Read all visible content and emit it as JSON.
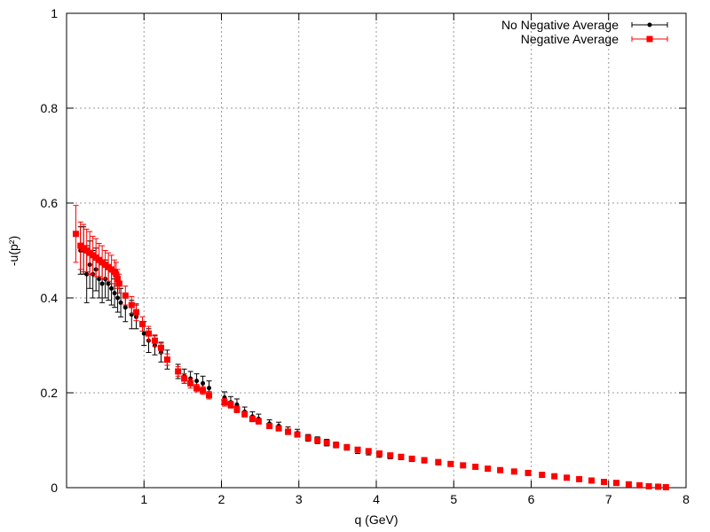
{
  "chart_data": {
    "type": "scatter",
    "title": "",
    "xlabel": "q (GeV)",
    "ylabel": "-u(p²)",
    "xlim": [
      0,
      8
    ],
    "ylim": [
      0,
      1
    ],
    "xticks": [
      "1",
      "2",
      "3",
      "4",
      "5",
      "6",
      "7",
      "8"
    ],
    "yticks": [
      "0",
      "0.2",
      "0.4",
      "0.6",
      "0.8",
      "1"
    ],
    "grid": true,
    "legend_position": "top-right",
    "series": [
      {
        "name": "No Negative Average",
        "color": "#000000",
        "marker": "circle",
        "points": [
          [
            0.18,
            0.5,
            0.05
          ],
          [
            0.22,
            0.5,
            0.05
          ],
          [
            0.26,
            0.45,
            0.06
          ],
          [
            0.3,
            0.47,
            0.05
          ],
          [
            0.34,
            0.45,
            0.05
          ],
          [
            0.38,
            0.46,
            0.045
          ],
          [
            0.42,
            0.44,
            0.04
          ],
          [
            0.46,
            0.43,
            0.04
          ],
          [
            0.5,
            0.44,
            0.04
          ],
          [
            0.54,
            0.43,
            0.035
          ],
          [
            0.58,
            0.42,
            0.035
          ],
          [
            0.62,
            0.41,
            0.03
          ],
          [
            0.66,
            0.4,
            0.03
          ],
          [
            0.7,
            0.39,
            0.03
          ],
          [
            0.76,
            0.38,
            0.03
          ],
          [
            0.84,
            0.365,
            0.03
          ],
          [
            0.9,
            0.36,
            0.025
          ],
          [
            1.0,
            0.325,
            0.025
          ],
          [
            1.06,
            0.31,
            0.025
          ],
          [
            1.14,
            0.3,
            0.02
          ],
          [
            1.22,
            0.285,
            0.02
          ],
          [
            1.3,
            0.27,
            0.02
          ],
          [
            1.44,
            0.245,
            0.015
          ],
          [
            1.52,
            0.235,
            0.015
          ],
          [
            1.6,
            0.23,
            0.015
          ],
          [
            1.68,
            0.225,
            0.015
          ],
          [
            1.76,
            0.22,
            0.015
          ],
          [
            1.84,
            0.21,
            0.015
          ],
          [
            2.04,
            0.19,
            0.012
          ],
          [
            2.12,
            0.18,
            0.012
          ],
          [
            2.2,
            0.175,
            0.012
          ],
          [
            2.3,
            0.16,
            0.01
          ],
          [
            2.4,
            0.15,
            0.01
          ],
          [
            2.48,
            0.145,
            0.01
          ],
          [
            2.62,
            0.135,
            0.008
          ],
          [
            2.74,
            0.13,
            0.008
          ],
          [
            2.86,
            0.12,
            0.008
          ],
          [
            2.98,
            0.115,
            0.008
          ],
          [
            3.12,
            0.105,
            0.007
          ],
          [
            3.24,
            0.1,
            0.007
          ],
          [
            3.36,
            0.095,
            0.007
          ],
          [
            3.48,
            0.09,
            0.006
          ],
          [
            3.62,
            0.085,
            0.006
          ],
          [
            3.76,
            0.078,
            0.006
          ],
          [
            3.9,
            0.075,
            0.006
          ],
          [
            4.04,
            0.07,
            0.006
          ],
          [
            4.18,
            0.066,
            0.005
          ],
          [
            4.32,
            0.064,
            0.005
          ],
          [
            4.46,
            0.06,
            0.005
          ],
          [
            4.62,
            0.057,
            0.005
          ],
          [
            4.8,
            0.053,
            0.005
          ],
          [
            4.96,
            0.05,
            0.005
          ],
          [
            5.12,
            0.047,
            0.004
          ],
          [
            5.28,
            0.044,
            0.004
          ],
          [
            5.44,
            0.04,
            0.004
          ],
          [
            5.6,
            0.037,
            0.004
          ],
          [
            5.78,
            0.034,
            0.004
          ],
          [
            5.96,
            0.031,
            0.004
          ],
          [
            6.14,
            0.028,
            0.004
          ],
          [
            6.3,
            0.025,
            0.004
          ],
          [
            6.46,
            0.022,
            0.004
          ],
          [
            6.62,
            0.019,
            0.004
          ],
          [
            6.78,
            0.016,
            0.004
          ],
          [
            6.94,
            0.013,
            0.004
          ],
          [
            7.1,
            0.011,
            0.004
          ],
          [
            7.26,
            0.008,
            0.004
          ],
          [
            7.4,
            0.006,
            0.003
          ],
          [
            7.52,
            0.004,
            0.003
          ],
          [
            7.64,
            0.003,
            0.003
          ],
          [
            7.74,
            0.002,
            0.003
          ]
        ]
      },
      {
        "name": "Negative Average",
        "color": "#ff0000",
        "marker": "square",
        "points": [
          [
            0.12,
            0.535,
            0.06
          ],
          [
            0.18,
            0.51,
            0.05
          ],
          [
            0.22,
            0.505,
            0.05
          ],
          [
            0.26,
            0.5,
            0.045
          ],
          [
            0.3,
            0.495,
            0.045
          ],
          [
            0.34,
            0.49,
            0.04
          ],
          [
            0.38,
            0.485,
            0.04
          ],
          [
            0.42,
            0.48,
            0.035
          ],
          [
            0.46,
            0.475,
            0.035
          ],
          [
            0.5,
            0.47,
            0.03
          ],
          [
            0.54,
            0.465,
            0.03
          ],
          [
            0.58,
            0.46,
            0.03
          ],
          [
            0.62,
            0.455,
            0.025
          ],
          [
            0.64,
            0.45,
            0.025
          ],
          [
            0.66,
            0.44,
            0.02
          ],
          [
            0.68,
            0.43,
            0.02
          ],
          [
            0.76,
            0.405,
            0.02
          ],
          [
            0.84,
            0.385,
            0.018
          ],
          [
            0.9,
            0.37,
            0.018
          ],
          [
            0.98,
            0.345,
            0.015
          ],
          [
            1.06,
            0.325,
            0.015
          ],
          [
            1.14,
            0.31,
            0.012
          ],
          [
            1.22,
            0.295,
            0.012
          ],
          [
            1.3,
            0.27,
            0.012
          ],
          [
            1.44,
            0.245,
            0.01
          ],
          [
            1.52,
            0.23,
            0.01
          ],
          [
            1.6,
            0.22,
            0.01
          ],
          [
            1.68,
            0.21,
            0.008
          ],
          [
            1.76,
            0.205,
            0.008
          ],
          [
            1.84,
            0.195,
            0.008
          ],
          [
            2.04,
            0.18,
            0.008
          ],
          [
            2.12,
            0.175,
            0.007
          ],
          [
            2.2,
            0.165,
            0.007
          ],
          [
            2.3,
            0.155,
            0.006
          ],
          [
            2.4,
            0.145,
            0.006
          ],
          [
            2.48,
            0.14,
            0.006
          ],
          [
            2.62,
            0.13,
            0.005
          ],
          [
            2.74,
            0.125,
            0.005
          ],
          [
            2.86,
            0.118,
            0.005
          ],
          [
            2.98,
            0.112,
            0.005
          ],
          [
            3.12,
            0.105,
            0.005
          ],
          [
            3.24,
            0.1,
            0.004
          ],
          [
            3.36,
            0.095,
            0.004
          ],
          [
            3.48,
            0.09,
            0.004
          ],
          [
            3.62,
            0.085,
            0.004
          ],
          [
            3.76,
            0.08,
            0.004
          ],
          [
            3.9,
            0.077,
            0.004
          ],
          [
            4.04,
            0.072,
            0.004
          ],
          [
            4.18,
            0.068,
            0.003
          ],
          [
            4.32,
            0.065,
            0.003
          ],
          [
            4.46,
            0.061,
            0.003
          ],
          [
            4.62,
            0.058,
            0.003
          ],
          [
            4.8,
            0.054,
            0.003
          ],
          [
            4.96,
            0.05,
            0.003
          ],
          [
            5.12,
            0.047,
            0.003
          ],
          [
            5.28,
            0.044,
            0.003
          ],
          [
            5.44,
            0.04,
            0.003
          ],
          [
            5.6,
            0.037,
            0.003
          ],
          [
            5.78,
            0.034,
            0.003
          ],
          [
            5.96,
            0.031,
            0.003
          ],
          [
            6.14,
            0.027,
            0.003
          ],
          [
            6.3,
            0.024,
            0.003
          ],
          [
            6.46,
            0.021,
            0.003
          ],
          [
            6.62,
            0.018,
            0.003
          ],
          [
            6.78,
            0.015,
            0.003
          ],
          [
            6.94,
            0.012,
            0.003
          ],
          [
            7.1,
            0.01,
            0.003
          ],
          [
            7.26,
            0.007,
            0.003
          ],
          [
            7.4,
            0.005,
            0.003
          ],
          [
            7.52,
            0.003,
            0.002
          ],
          [
            7.64,
            0.002,
            0.002
          ],
          [
            7.74,
            0.001,
            0.002
          ]
        ]
      }
    ]
  }
}
